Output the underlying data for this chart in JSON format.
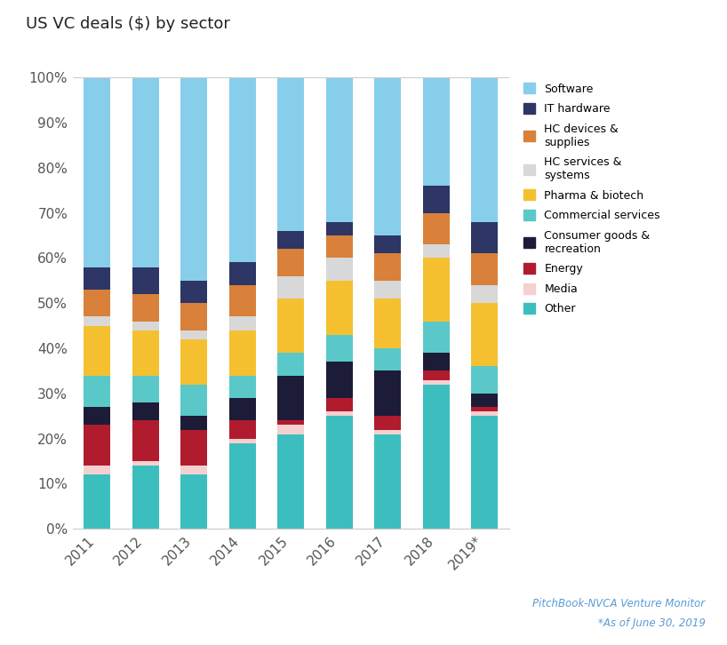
{
  "title": "US VC deals ($) by sector",
  "years": [
    "2011",
    "2012",
    "2013",
    "2014",
    "2015",
    "2016",
    "2017",
    "2018",
    "2019*"
  ],
  "sectors": [
    "Other",
    "Media",
    "Energy",
    "Consumer goods &\nrecreation",
    "Commercial services",
    "Pharma & biotech",
    "HC services &\nsystems",
    "HC devices &\nsupplies",
    "IT hardware",
    "Software"
  ],
  "colors": [
    "#3dbebe",
    "#f5d0d0",
    "#b01c2e",
    "#1c1c38",
    "#5ac8c8",
    "#f5c030",
    "#d8d8d8",
    "#d9803a",
    "#2d3665",
    "#87ceeb"
  ],
  "data": {
    "Other": [
      12,
      14,
      12,
      19,
      21,
      25,
      21,
      32,
      25
    ],
    "Media": [
      2,
      1,
      2,
      1,
      2,
      1,
      1,
      1,
      1
    ],
    "Energy": [
      9,
      9,
      8,
      4,
      1,
      3,
      3,
      2,
      1
    ],
    "Consumer goods &\nrecreation": [
      4,
      4,
      3,
      5,
      10,
      8,
      10,
      4,
      3
    ],
    "Commercial services": [
      7,
      6,
      7,
      5,
      5,
      6,
      5,
      7,
      6
    ],
    "Pharma & biotech": [
      11,
      10,
      10,
      10,
      12,
      12,
      11,
      14,
      14
    ],
    "HC services &\nsystems": [
      2,
      2,
      2,
      3,
      5,
      5,
      4,
      3,
      4
    ],
    "HC devices &\nsupplies": [
      6,
      6,
      6,
      7,
      6,
      5,
      6,
      7,
      7
    ],
    "IT hardware": [
      5,
      6,
      5,
      5,
      4,
      3,
      4,
      6,
      7
    ],
    "Software": [
      42,
      42,
      45,
      41,
      34,
      32,
      35,
      24,
      32
    ]
  },
  "legend_labels": [
    "Software",
    "IT hardware",
    "HC devices &\nsupplies",
    "HC services &\nsystems",
    "Pharma & biotech",
    "Commercial services",
    "Consumer goods &\nrecreation",
    "Energy",
    "Media",
    "Other"
  ],
  "source_line1": "PitchBook-NVCA Venture Monitor",
  "source_line2": "*As of June 30, 2019",
  "source_color": "#5b9bd5",
  "background_color": "#ffffff"
}
